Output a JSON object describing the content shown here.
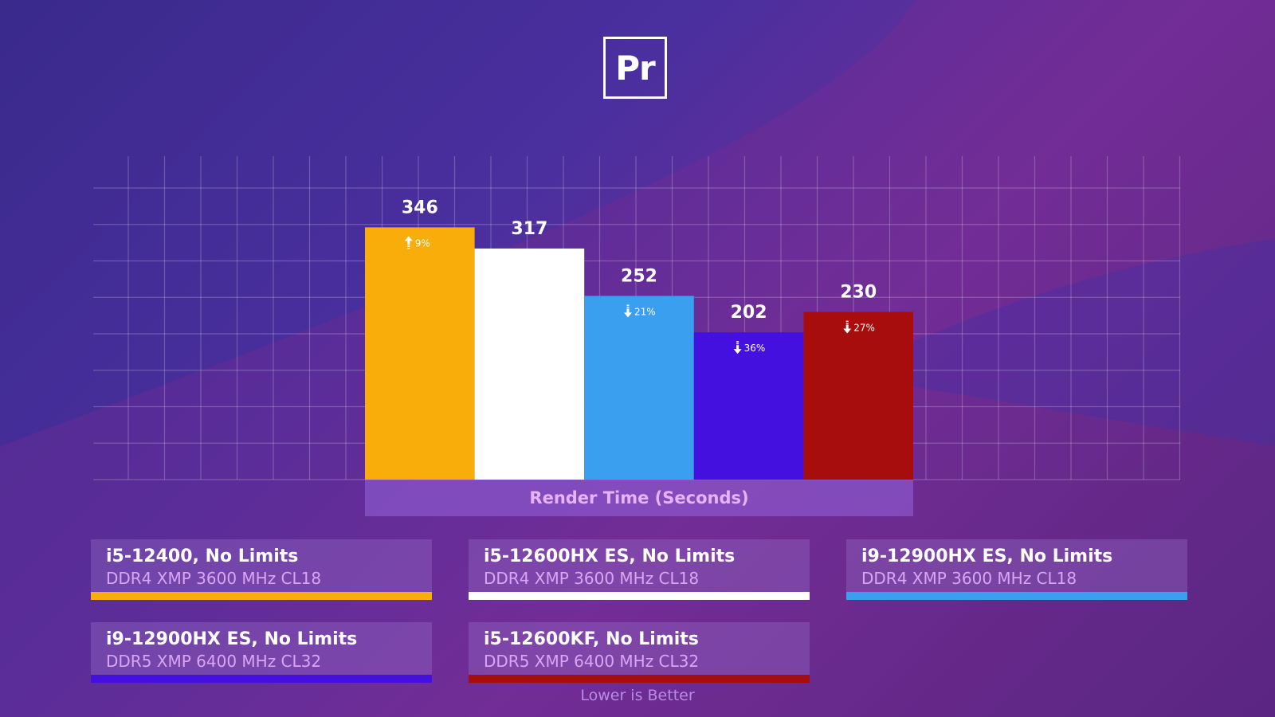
{
  "logo": {
    "text": "Pr"
  },
  "chart_data": {
    "type": "bar",
    "categories": [
      "i5-12400, No Limits",
      "i5-12600HX ES, No Limits",
      "i9-12900HX ES, No Limits",
      "i9-12900HX ES, No Limits",
      "i5-12600KF, No Limits"
    ],
    "values": [
      346,
      317,
      252,
      202,
      230
    ],
    "value_labels": [
      "346",
      "317",
      "252",
      "202",
      "230"
    ],
    "changes": [
      {
        "direction": "up",
        "text": "9%"
      },
      null,
      {
        "direction": "down",
        "text": "21%"
      },
      {
        "direction": "down",
        "text": "36%"
      },
      {
        "direction": "down",
        "text": "27%"
      }
    ],
    "colors": [
      "#f8ad0b",
      "#ffffff",
      "#3b9ff0",
      "#4410e0",
      "#a80d0d"
    ],
    "xlabel": "Render Time (Seconds)",
    "ylim": [
      0,
      400
    ],
    "grid": true
  },
  "legend": [
    {
      "name": "i5-12400, No Limits",
      "spec": "DDR4 XMP 3600 MHz CL18",
      "color": "#f8ad0b"
    },
    {
      "name": "i5-12600HX ES, No Limits",
      "spec": "DDR4 XMP 3600 MHz CL18",
      "color": "#ffffff"
    },
    {
      "name": "i9-12900HX ES, No Limits",
      "spec": "DDR4 XMP 3600 MHz CL18",
      "color": "#3b9ff0"
    },
    {
      "name": "i9-12900HX ES, No Limits",
      "spec": "DDR5 XMP 6400 MHz CL32",
      "color": "#4410e0"
    },
    {
      "name": "i5-12600KF, No Limits",
      "spec": "DDR5 XMP 6400 MHz CL32",
      "color": "#a80d0d"
    }
  ],
  "footnote": "Lower is Better"
}
